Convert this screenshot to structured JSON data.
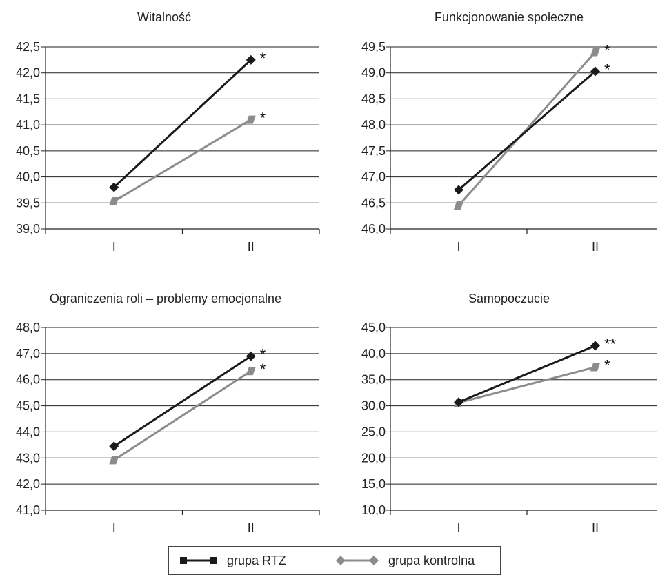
{
  "chart_data": [
    {
      "type": "line",
      "title": "Witalność",
      "categories": [
        "I",
        "II"
      ],
      "yticks": [
        "39,0",
        "39,5",
        "40,0",
        "40,5",
        "41,0",
        "41,5",
        "42,0",
        "42,5"
      ],
      "ylim": [
        39.0,
        42.5
      ],
      "grid": true,
      "series": [
        {
          "name": "grupa RTZ",
          "values": [
            39.8,
            42.25
          ],
          "significance": [
            "",
            "*"
          ]
        },
        {
          "name": "grupa kontrolna",
          "values": [
            39.53,
            41.1
          ],
          "significance": [
            "",
            "*"
          ]
        }
      ]
    },
    {
      "type": "line",
      "title": "Funkcjonowanie społeczne",
      "categories": [
        "I",
        "II"
      ],
      "yticks": [
        "46,0",
        "46,5",
        "47,0",
        "47,5",
        "48,0",
        "48,5",
        "49,0",
        "49,5"
      ],
      "ylim": [
        46.0,
        49.5
      ],
      "grid": true,
      "series": [
        {
          "name": "grupa RTZ",
          "values": [
            46.75,
            49.03
          ],
          "significance": [
            "",
            "*"
          ]
        },
        {
          "name": "grupa kontrolna",
          "values": [
            46.45,
            49.4
          ],
          "significance": [
            "",
            "*"
          ]
        }
      ]
    },
    {
      "type": "line",
      "title": "Ograniczenia roli – problemy emocjonalne",
      "categories": [
        "I",
        "II"
      ],
      "yticks": [
        "41,0",
        "42,0",
        "43,0",
        "44,0",
        "45,0",
        "46,0",
        "47,0",
        "48,0"
      ],
      "ylim": [
        41.0,
        48.0
      ],
      "grid": true,
      "series": [
        {
          "name": "grupa RTZ",
          "values": [
            43.45,
            46.9
          ],
          "significance": [
            "",
            "*"
          ]
        },
        {
          "name": "grupa kontrolna",
          "values": [
            42.92,
            46.33
          ],
          "significance": [
            "",
            "*"
          ]
        }
      ]
    },
    {
      "type": "line",
      "title": "Samopoczucie",
      "categories": [
        "I",
        "II"
      ],
      "yticks": [
        "10,0",
        "15,0",
        "20,0",
        "25,0",
        "30,0",
        "35,0",
        "40,0",
        "45,0"
      ],
      "ylim": [
        10.0,
        45.0
      ],
      "grid": true,
      "series": [
        {
          "name": "grupa RTZ",
          "values": [
            30.7,
            41.5
          ],
          "significance": [
            "",
            "**"
          ]
        },
        {
          "name": "grupa kontrolna",
          "values": [
            30.6,
            37.4
          ],
          "significance": [
            "",
            "*"
          ]
        }
      ]
    }
  ],
  "legend": {
    "placement": "bottom",
    "items": [
      {
        "label": "grupa RTZ",
        "color": "#1a1a1a",
        "marker": "square"
      },
      {
        "label": "grupa kontrolna",
        "color": "#8c8c8c",
        "marker": "diamond"
      }
    ]
  },
  "colors": {
    "series_1": "#1a1a1a",
    "series_2": "#8c8c8c",
    "grid": "#222222"
  }
}
